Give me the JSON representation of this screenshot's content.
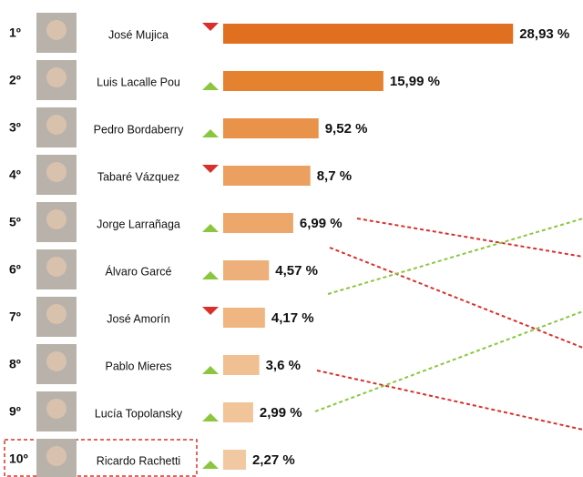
{
  "chart_data": {
    "type": "bar",
    "ranks": [
      "1º",
      "2º",
      "3º",
      "4º",
      "5º",
      "6º",
      "7º",
      "8º",
      "9º",
      "10º"
    ],
    "categories": [
      "José Mujica",
      "Luis Lacalle Pou",
      "Pedro Bordaberry",
      "Tabaré Vázquez",
      "Jorge Larrañaga",
      "Álvaro Garcé",
      "José Amorín",
      "Pablo Mieres",
      "Lucía Topolansky",
      "Ricardo Rachetti"
    ],
    "values": [
      28.93,
      15.99,
      9.52,
      8.7,
      6.99,
      4.57,
      4.17,
      3.6,
      2.99,
      2.27
    ],
    "value_labels": [
      "28,93 %",
      "15,99 %",
      "9,52 %",
      "8,7 %",
      "6,99 %",
      "4,57 %",
      "4,17 %",
      "3,6 %",
      "2,99 %",
      "2,27 %"
    ],
    "trend": [
      "down",
      "up",
      "up",
      "down",
      "up",
      "up",
      "down",
      "up",
      "up",
      "up"
    ],
    "colors": [
      "#e07020",
      "#e5822f",
      "#e8924a",
      "#eba060",
      "#eda76a",
      "#eeb07a",
      "#efb682",
      "#f0bf92",
      "#f1c49a",
      "#f2c8a2"
    ],
    "trend_colors": {
      "down": "#d9302c",
      "up": "#8cc63f"
    }
  }
}
